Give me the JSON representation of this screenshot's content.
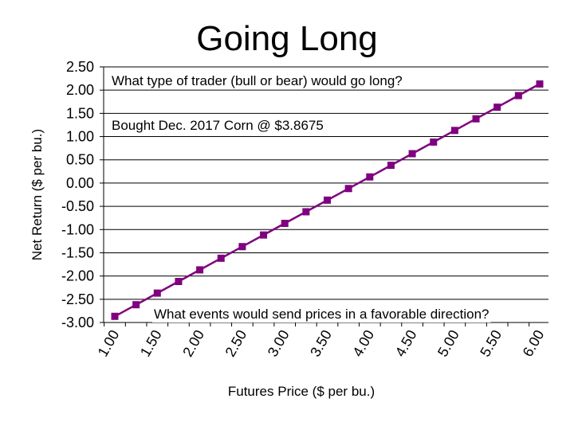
{
  "slide": {
    "title": "Going Long"
  },
  "chart_data": {
    "type": "line",
    "title": "",
    "xlabel": "Futures Price ($ per bu.)",
    "ylabel": "Net Return ($ per bu.)",
    "xlim": [
      1.0,
      6.0
    ],
    "ylim": [
      -3.0,
      2.5
    ],
    "x_ticks": [
      "1.00",
      "1.50",
      "2.00",
      "2.50",
      "3.00",
      "3.50",
      "4.00",
      "4.50",
      "5.00",
      "5.50",
      "6.00"
    ],
    "y_ticks": [
      "2.50",
      "2.00",
      "1.50",
      "1.00",
      "0.50",
      "0.00",
      "-0.50",
      "-1.00",
      "-1.50",
      "-2.00",
      "-2.50",
      "-3.00"
    ],
    "grid": true,
    "legend": "none",
    "series": [
      {
        "color": "#7f007f",
        "marker": "square",
        "x": [
          1.0,
          1.25,
          1.5,
          1.75,
          2.0,
          2.25,
          2.5,
          2.75,
          3.0,
          3.25,
          3.5,
          3.75,
          4.0,
          4.25,
          4.5,
          4.75,
          5.0,
          5.25,
          5.5,
          5.75,
          6.0
        ],
        "values": [
          -2.8675,
          -2.6175,
          -2.3675,
          -2.1175,
          -1.8675,
          -1.6175,
          -1.3675,
          -1.1175,
          -0.8675,
          -0.6175,
          -0.3675,
          -0.1175,
          0.1325,
          0.3825,
          0.6325,
          0.8825,
          1.1325,
          1.3825,
          1.6325,
          1.8825,
          2.1325
        ]
      }
    ],
    "annotations": [
      {
        "text": "What type of trader (bull or bear) would go long?"
      },
      {
        "text": "Bought Dec. 2017 Corn @ $3.8675"
      },
      {
        "text": "What events would send prices in a favorable direction?"
      }
    ]
  }
}
